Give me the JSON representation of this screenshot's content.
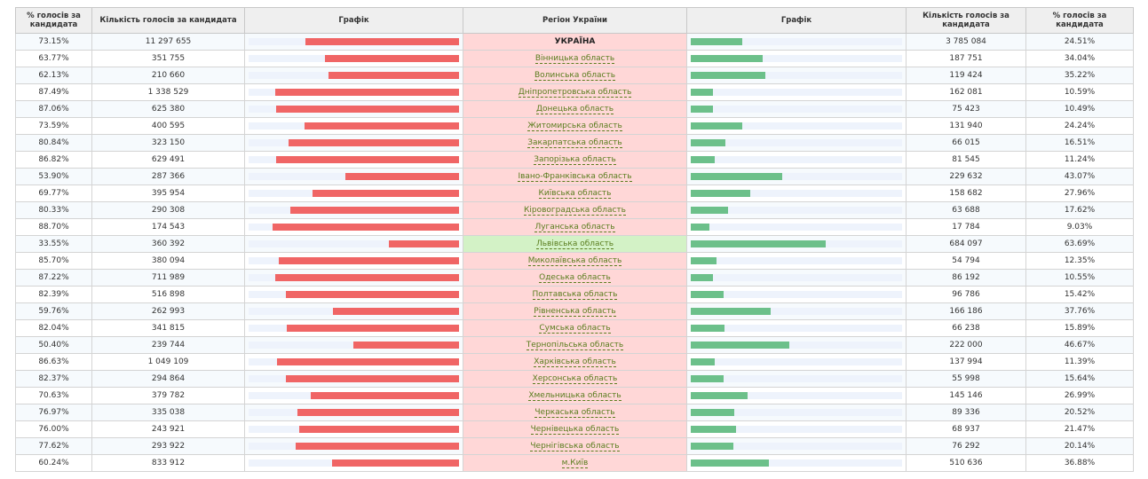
{
  "table": {
    "header": [
      "% голосів за кандидата",
      "Кількість голосів за кандидата",
      "Графік",
      "Регіон України",
      "Графік",
      "Кількість голосів за кандидата",
      "% голосів за кандидата"
    ],
    "bar_range": [
      0,
      100
    ],
    "colors": {
      "left": "#f06565",
      "right": "#6cc08a",
      "track": "#eef3fc",
      "region": "#ffd7d7",
      "region_right": "#d3f2c6",
      "link": "#5a7d1e"
    },
    "rows": [
      {
        "region": "УКРАЇНА",
        "left_pct": {
          "value": 73.15,
          "label": "73.15%"
        },
        "left_votes": "11 297 655",
        "right_votes": "3 785 084",
        "right_pct": {
          "value": 24.51,
          "label": "24.51%"
        }
      },
      {
        "region": "Вінницька область",
        "left_pct": {
          "value": 63.77,
          "label": "63.77%"
        },
        "left_votes": "351 755",
        "right_votes": "187 751",
        "right_pct": {
          "value": 34.04,
          "label": "34.04%"
        }
      },
      {
        "region": "Волинська область",
        "left_pct": {
          "value": 62.13,
          "label": "62.13%"
        },
        "left_votes": "210 660",
        "right_votes": "119 424",
        "right_pct": {
          "value": 35.22,
          "label": "35.22%"
        }
      },
      {
        "region": "Дніпропетровська область",
        "left_pct": {
          "value": 87.49,
          "label": "87.49%"
        },
        "left_votes": "1 338 529",
        "right_votes": "162 081",
        "right_pct": {
          "value": 10.59,
          "label": "10.59%"
        }
      },
      {
        "region": "Донецька область",
        "left_pct": {
          "value": 87.06,
          "label": "87.06%"
        },
        "left_votes": "625 380",
        "right_votes": "75 423",
        "right_pct": {
          "value": 10.49,
          "label": "10.49%"
        }
      },
      {
        "region": "Житомирська область",
        "left_pct": {
          "value": 73.59,
          "label": "73.59%"
        },
        "left_votes": "400 595",
        "right_votes": "131 940",
        "right_pct": {
          "value": 24.24,
          "label": "24.24%"
        }
      },
      {
        "region": "Закарпатська область",
        "left_pct": {
          "value": 80.84,
          "label": "80.84%"
        },
        "left_votes": "323 150",
        "right_votes": "66 015",
        "right_pct": {
          "value": 16.51,
          "label": "16.51%"
        }
      },
      {
        "region": "Запорізька область",
        "left_pct": {
          "value": 86.82,
          "label": "86.82%"
        },
        "left_votes": "629 491",
        "right_votes": "81 545",
        "right_pct": {
          "value": 11.24,
          "label": "11.24%"
        }
      },
      {
        "region": "Івано-Франківська область",
        "left_pct": {
          "value": 53.9,
          "label": "53.90%"
        },
        "left_votes": "287 366",
        "right_votes": "229 632",
        "right_pct": {
          "value": 43.07,
          "label": "43.07%"
        }
      },
      {
        "region": "Київська область",
        "left_pct": {
          "value": 69.77,
          "label": "69.77%"
        },
        "left_votes": "395 954",
        "right_votes": "158 682",
        "right_pct": {
          "value": 27.96,
          "label": "27.96%"
        }
      },
      {
        "region": "Кіровоградська область",
        "left_pct": {
          "value": 80.33,
          "label": "80.33%"
        },
        "left_votes": "290 308",
        "right_votes": "63 688",
        "right_pct": {
          "value": 17.62,
          "label": "17.62%"
        }
      },
      {
        "region": "Луганська область",
        "left_pct": {
          "value": 88.7,
          "label": "88.70%"
        },
        "left_votes": "174 543",
        "right_votes": "17 784",
        "right_pct": {
          "value": 9.03,
          "label": "9.03%"
        }
      },
      {
        "region": "Львівська область",
        "left_pct": {
          "value": 33.55,
          "label": "33.55%"
        },
        "left_votes": "360 392",
        "right_votes": "684 097",
        "right_pct": {
          "value": 63.69,
          "label": "63.69%"
        }
      },
      {
        "region": "Миколаївська область",
        "left_pct": {
          "value": 85.7,
          "label": "85.70%"
        },
        "left_votes": "380 094",
        "right_votes": "54 794",
        "right_pct": {
          "value": 12.35,
          "label": "12.35%"
        }
      },
      {
        "region": "Одеська область",
        "left_pct": {
          "value": 87.22,
          "label": "87.22%"
        },
        "left_votes": "711 989",
        "right_votes": "86 192",
        "right_pct": {
          "value": 10.55,
          "label": "10.55%"
        }
      },
      {
        "region": "Полтавська область",
        "left_pct": {
          "value": 82.39,
          "label": "82.39%"
        },
        "left_votes": "516 898",
        "right_votes": "96 786",
        "right_pct": {
          "value": 15.42,
          "label": "15.42%"
        }
      },
      {
        "region": "Рівненська область",
        "left_pct": {
          "value": 59.76,
          "label": "59.76%"
        },
        "left_votes": "262 993",
        "right_votes": "166 186",
        "right_pct": {
          "value": 37.76,
          "label": "37.76%"
        }
      },
      {
        "region": "Сумська область",
        "left_pct": {
          "value": 82.04,
          "label": "82.04%"
        },
        "left_votes": "341 815",
        "right_votes": "66 238",
        "right_pct": {
          "value": 15.89,
          "label": "15.89%"
        }
      },
      {
        "region": "Тернопільська область",
        "left_pct": {
          "value": 50.4,
          "label": "50.40%"
        },
        "left_votes": "239 744",
        "right_votes": "222 000",
        "right_pct": {
          "value": 46.67,
          "label": "46.67%"
        }
      },
      {
        "region": "Харківська область",
        "left_pct": {
          "value": 86.63,
          "label": "86.63%"
        },
        "left_votes": "1 049 109",
        "right_votes": "137 994",
        "right_pct": {
          "value": 11.39,
          "label": "11.39%"
        }
      },
      {
        "region": "Херсонська область",
        "left_pct": {
          "value": 82.37,
          "label": "82.37%"
        },
        "left_votes": "294 864",
        "right_votes": "55 998",
        "right_pct": {
          "value": 15.64,
          "label": "15.64%"
        }
      },
      {
        "region": "Хмельницька область",
        "left_pct": {
          "value": 70.63,
          "label": "70.63%"
        },
        "left_votes": "379 782",
        "right_votes": "145 146",
        "right_pct": {
          "value": 26.99,
          "label": "26.99%"
        }
      },
      {
        "region": "Черкаська область",
        "left_pct": {
          "value": 76.97,
          "label": "76.97%"
        },
        "left_votes": "335 038",
        "right_votes": "89 336",
        "right_pct": {
          "value": 20.52,
          "label": "20.52%"
        }
      },
      {
        "region": "Чернівецька область",
        "left_pct": {
          "value": 76.0,
          "label": "76.00%"
        },
        "left_votes": "243 921",
        "right_votes": "68 937",
        "right_pct": {
          "value": 21.47,
          "label": "21.47%"
        }
      },
      {
        "region": "Чернігівська область",
        "left_pct": {
          "value": 77.62,
          "label": "77.62%"
        },
        "left_votes": "293 922",
        "right_votes": "76 292",
        "right_pct": {
          "value": 20.14,
          "label": "20.14%"
        }
      },
      {
        "region": "м.Київ",
        "left_pct": {
          "value": 60.24,
          "label": "60.24%"
        },
        "left_votes": "833 912",
        "right_votes": "510 636",
        "right_pct": {
          "value": 36.88,
          "label": "36.88%"
        }
      }
    ]
  }
}
